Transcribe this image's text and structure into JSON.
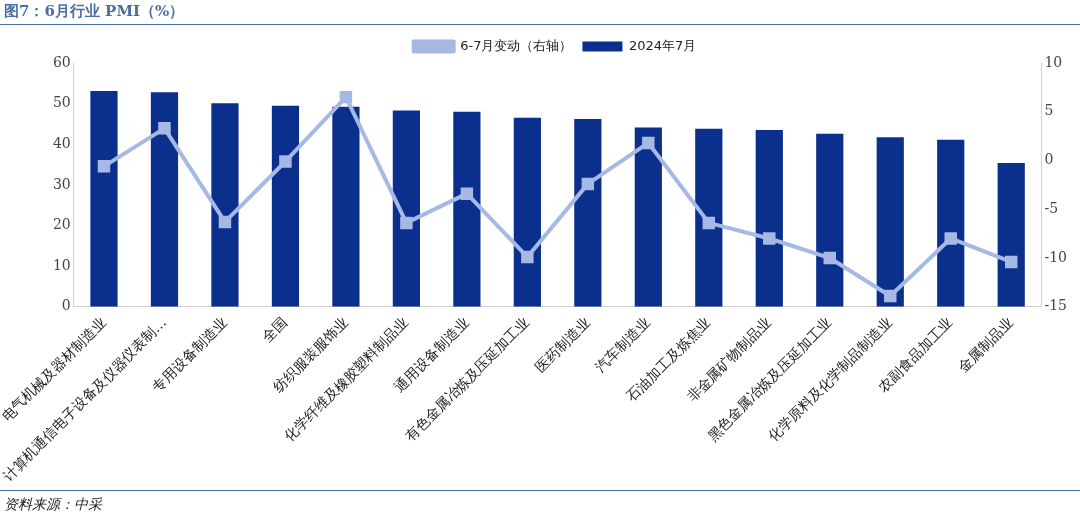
{
  "chart_data": {
    "type": "bar",
    "title": "图7：6月行业 PMI（%）",
    "categories": [
      "电气机械及器材制造业",
      "计算机通信电子设备及仪器仪表制…",
      "专用设备制造业",
      "全国",
      "纺织服装服饰业",
      "化学纤维及橡胶塑料制品业",
      "通用设备制造业",
      "有色金属冶炼及压延加工业",
      "医药制造业",
      "汽车制造业",
      "石油加工及炼焦业",
      "非金属矿物制品业",
      "黑色金属冶炼及压延加工业",
      "化学原料及化学制品制造业",
      "农副食品加工业",
      "金属制品业"
    ],
    "series": [
      {
        "name": "2024年7月",
        "color": "#0b2f8c",
        "values": [
          53.1,
          52.8,
          50.1,
          49.5,
          49.2,
          48.3,
          48.0,
          46.5,
          46.2,
          44.1,
          43.8,
          43.5,
          42.6,
          41.7,
          41.1,
          35.4
        ]
      },
      {
        "name": "6-7月变动（右轴）",
        "type": "line",
        "axis": "y2",
        "color": "#a5b9e4",
        "values": [
          -0.6,
          3.3,
          -6.3,
          -0.1,
          6.5,
          -6.4,
          -3.4,
          -9.9,
          -2.4,
          1.8,
          -6.4,
          -8.0,
          -10.0,
          -13.9,
          -8.0,
          -10.4
        ]
      }
    ],
    "ylim": [
      0,
      60
    ],
    "yticks": [
      0,
      10,
      20,
      30,
      40,
      50,
      60
    ],
    "y2lim": [
      -15,
      10
    ],
    "y2ticks": [
      -15,
      -10,
      -5,
      0,
      5,
      10
    ],
    "legend": "top",
    "marker": "square",
    "grid": false,
    "annotations": [
      "资料来源：中采"
    ]
  }
}
